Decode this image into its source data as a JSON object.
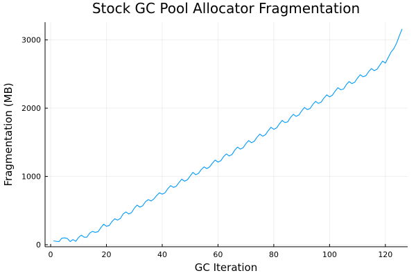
{
  "chart_data": {
    "type": "line",
    "title": "Stock GC Pool Allocator Fragmentation",
    "xlabel": "GC Iteration",
    "ylabel": "Fragmentation (MB)",
    "xlim": [
      -2,
      128
    ],
    "ylim": [
      -30,
      3260
    ],
    "xticks": [
      0,
      20,
      40,
      60,
      80,
      100,
      120
    ],
    "yticks": [
      0,
      1000,
      2000,
      3000
    ],
    "grid": true,
    "legend": "none",
    "series": [
      {
        "color": "#009AFA",
        "x": [
          1,
          2,
          3,
          4,
          5,
          6,
          7,
          8,
          9,
          10,
          11,
          12,
          13,
          14,
          15,
          16,
          17,
          18,
          19,
          20,
          21,
          22,
          23,
          24,
          25,
          26,
          27,
          28,
          29,
          30,
          31,
          32,
          33,
          34,
          35,
          36,
          37,
          38,
          39,
          40,
          41,
          42,
          43,
          44,
          45,
          46,
          47,
          48,
          49,
          50,
          51,
          52,
          53,
          54,
          55,
          56,
          57,
          58,
          59,
          60,
          61,
          62,
          63,
          64,
          65,
          66,
          67,
          68,
          69,
          70,
          71,
          72,
          73,
          74,
          75,
          76,
          77,
          78,
          79,
          80,
          81,
          82,
          83,
          84,
          85,
          86,
          87,
          88,
          89,
          90,
          91,
          92,
          93,
          94,
          95,
          96,
          97,
          98,
          99,
          100,
          101,
          102,
          103,
          104,
          105,
          106,
          107,
          108,
          109,
          110,
          111,
          112,
          113,
          114,
          115,
          116,
          117,
          118,
          119,
          120,
          121,
          122,
          123,
          124,
          125,
          126
        ],
        "y": [
          55,
          50,
          45,
          95,
          100,
          90,
          45,
          75,
          50,
          105,
          140,
          110,
          110,
          170,
          195,
          180,
          190,
          250,
          300,
          270,
          280,
          340,
          380,
          360,
          385,
          450,
          480,
          450,
          470,
          535,
          580,
          550,
          570,
          630,
          660,
          640,
          670,
          720,
          760,
          740,
          760,
          820,
          865,
          840,
          855,
          910,
          960,
          930,
          950,
          1005,
          1060,
          1025,
          1045,
          1100,
          1140,
          1115,
          1140,
          1195,
          1240,
          1210,
          1230,
          1290,
          1330,
          1300,
          1320,
          1385,
          1430,
          1400,
          1420,
          1480,
          1525,
          1495,
          1515,
          1575,
          1620,
          1590,
          1610,
          1670,
          1720,
          1690,
          1710,
          1770,
          1820,
          1790,
          1800,
          1865,
          1910,
          1880,
          1900,
          1960,
          2010,
          1980,
          1995,
          2055,
          2100,
          2070,
          2090,
          2150,
          2195,
          2165,
          2190,
          2250,
          2300,
          2270,
          2280,
          2345,
          2390,
          2360,
          2380,
          2440,
          2490,
          2460,
          2475,
          2535,
          2580,
          2550,
          2570,
          2630,
          2690,
          2660,
          2740,
          2820,
          2870,
          2950,
          3060,
          3160
        ]
      }
    ]
  }
}
